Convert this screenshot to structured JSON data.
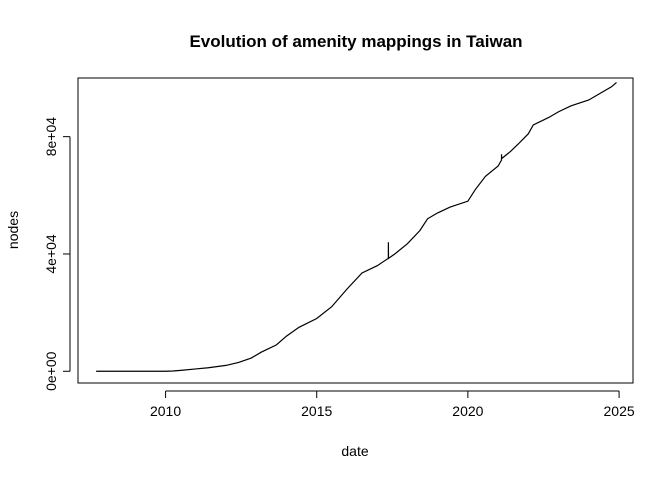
{
  "chart_data": {
    "type": "line",
    "title": "Evolution of amenity mappings in Taiwan",
    "xlabel": "date",
    "ylabel": "nodes",
    "x_type": "date",
    "xlim": [
      "2007-02-08",
      "2025-06-18"
    ],
    "ylim": [
      -4000,
      100000
    ],
    "x_ticks": [
      {
        "value": "2010-01-01",
        "label": "2010"
      },
      {
        "value": "2015-01-01",
        "label": "2015"
      },
      {
        "value": "2020-01-01",
        "label": "2020"
      },
      {
        "value": "2025-01-01",
        "label": "2025"
      }
    ],
    "y_ticks": [
      {
        "value": 0,
        "label": "0e+00"
      },
      {
        "value": 40000,
        "label": "4e+04"
      },
      {
        "value": 80000,
        "label": "8e+04"
      }
    ],
    "grid": false,
    "legend": "none",
    "line_color": "#000000",
    "series": [
      {
        "x": [
          "2007-09-15",
          "2008-06-01",
          "2009-01-01",
          "2009-06-01",
          "2010-01-01",
          "2010-04-01",
          "2010-07-01",
          "2011-01-01",
          "2011-06-01",
          "2012-01-01",
          "2012-06-01",
          "2012-11-01",
          "2013-03-01",
          "2013-09-01",
          "2014-01-01",
          "2014-06-01",
          "2015-01-01",
          "2015-07-01",
          "2016-01-01",
          "2016-07-01",
          "2017-01-01",
          "2017-05-15",
          "2017-05-16",
          "2017-05-17",
          "2017-08-01",
          "2018-01-01",
          "2018-06-01",
          "2018-09-01",
          "2019-01-01",
          "2019-06-01",
          "2020-01-01",
          "2020-04-01",
          "2020-08-01",
          "2021-01-01",
          "2021-02-10",
          "2021-02-11",
          "2021-02-12",
          "2021-06-01",
          "2021-09-01",
          "2022-01-01",
          "2022-03-01",
          "2022-09-01",
          "2023-01-01",
          "2023-06-01",
          "2024-01-01",
          "2024-06-01",
          "2024-10-01",
          "2024-12-01"
        ],
        "y": [
          0,
          0,
          0,
          0,
          0,
          100,
          300,
          800,
          1200,
          2000,
          3000,
          4500,
          6500,
          9000,
          12000,
          15000,
          18000,
          22000,
          28000,
          33500,
          36000,
          38500,
          44000,
          38500,
          40000,
          43500,
          48000,
          52000,
          54000,
          56000,
          58000,
          62000,
          66500,
          70000,
          72000,
          74000,
          72500,
          75000,
          77500,
          81000,
          84000,
          86500,
          88500,
          90500,
          92500,
          95000,
          97000,
          98500
        ]
      }
    ]
  }
}
